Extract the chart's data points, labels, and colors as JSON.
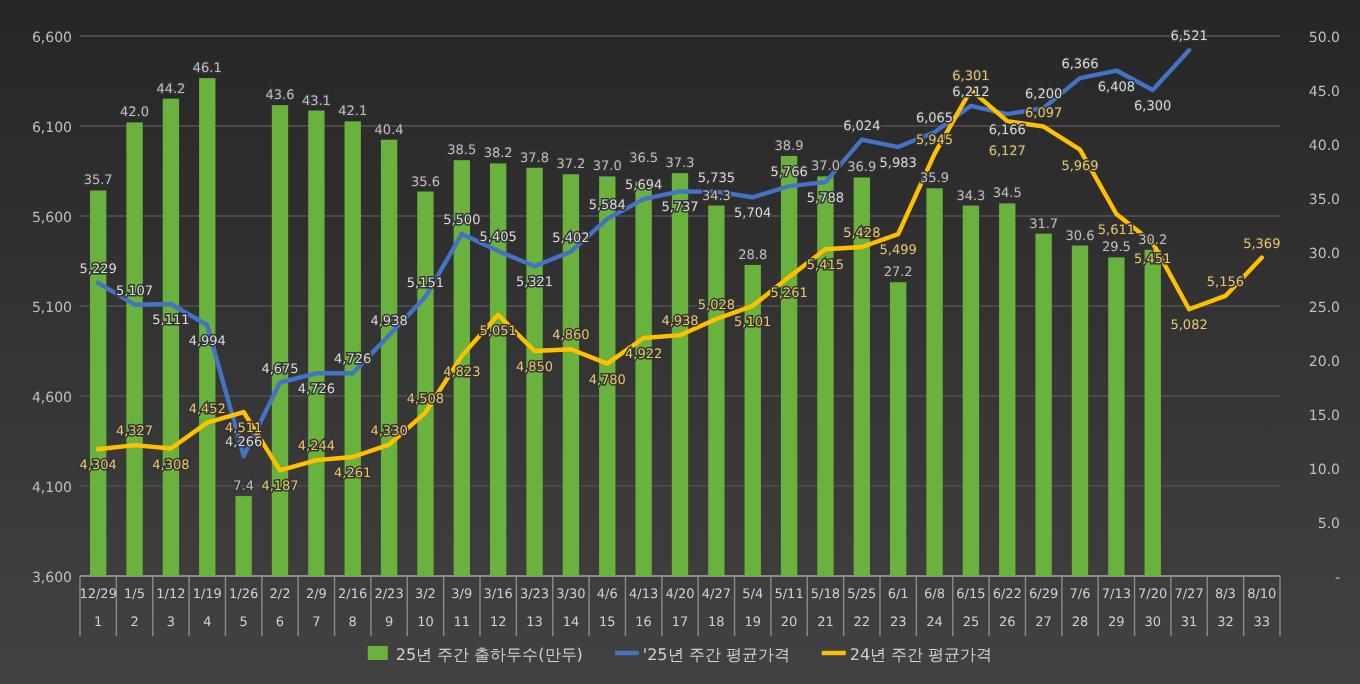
{
  "chart_data": {
    "type": "bar",
    "categories": [
      "12/29\n1",
      "1/5\n2",
      "1/12\n3",
      "1/19\n4",
      "1/26\n5",
      "2/2\n6",
      "2/9\n7",
      "2/16\n8",
      "2/23\n9",
      "3/2\n10",
      "3/9\n11",
      "3/16\n12",
      "3/23\n13",
      "3/30\n14",
      "4/6\n15",
      "4/13\n16",
      "4/20\n17",
      "4/27\n18",
      "5/4\n19",
      "5/11\n20",
      "5/18\n21",
      "5/25\n22",
      "6/1\n23",
      "6/8\n24",
      "6/15\n25",
      "6/22\n26",
      "6/29\n27",
      "7/6\n28",
      "7/13\n29",
      "7/20\n30",
      "7/27\n31",
      "8/3\n32",
      "8/10\n33"
    ],
    "series": [
      {
        "name": "25년 주간 출하두수(만두)",
        "type": "bar",
        "axis": "y2",
        "color": "#6ab23e",
        "values": [
          35.7,
          42.0,
          44.2,
          46.1,
          7.4,
          43.6,
          43.1,
          42.1,
          40.4,
          35.6,
          38.5,
          38.2,
          37.8,
          37.2,
          37.0,
          36.5,
          37.3,
          34.3,
          28.8,
          38.9,
          37.0,
          36.9,
          27.2,
          35.9,
          34.3,
          34.5,
          31.7,
          30.6,
          29.5,
          30.2,
          null,
          null,
          null
        ],
        "value_labels": [
          "35.7",
          "42.0",
          "44.2",
          "46.1",
          "7.4",
          "43.6",
          "43.1",
          "42.1",
          "40.4",
          "35.6",
          "38.5",
          "38.2",
          "37.8",
          "37.2",
          "37.0",
          "36.5",
          "37.3",
          "34.3",
          "28.8",
          "38.9",
          "37.0",
          "36.9",
          "27.2",
          "35.9",
          "34.3",
          "34.5",
          "31.7",
          "30.6",
          "29.5",
          "30.2",
          null,
          null,
          null
        ]
      },
      {
        "name": "'25년 주간 평균가격",
        "type": "line",
        "color": "#4472c4",
        "values": [
          5229,
          5107,
          5111,
          4994,
          4266,
          4675,
          4726,
          4726,
          4938,
          5151,
          5500,
          5405,
          5321,
          5402,
          5584,
          5694,
          5737,
          5735,
          5704,
          5766,
          5788,
          6024,
          5983,
          6065,
          6212,
          6166,
          6200,
          6366,
          6408,
          6300,
          6521,
          null,
          null
        ],
        "value_labels": [
          "5,229",
          "5,107",
          "5,111",
          "4,994",
          "4,266",
          "4,675",
          "4,726",
          "4,726",
          "4,938",
          "5,151",
          "5,500",
          "5,405",
          "5,321",
          "5,402",
          "5,584",
          "5,694",
          "5,737",
          "5,735",
          "5,704",
          "5,766",
          "5,788",
          "6,024",
          "5,983",
          "6,065",
          "6,212",
          "6,166",
          "6,200",
          "6,366",
          "6,408",
          "6,300",
          "6,521",
          null,
          null
        ]
      },
      {
        "name": "24년 주간 평균가격",
        "type": "line",
        "color": "#ffc000",
        "values": [
          4304,
          4327,
          4308,
          4452,
          4511,
          4187,
          4244,
          4261,
          4330,
          4508,
          4823,
          5051,
          4850,
          4860,
          4780,
          4922,
          4938,
          5028,
          5101,
          5261,
          5415,
          5428,
          5499,
          5945,
          6301,
          6127,
          6097,
          5969,
          5611,
          5451,
          5082,
          5156,
          5369
        ],
        "value_labels": [
          "4,304",
          "4,327",
          "4,308",
          "4,452",
          "4,511",
          "4,187",
          "4,244",
          "4,261",
          "4,330",
          "4,508",
          "4,823",
          "5,051",
          "4,850",
          "4,860",
          "4,780",
          "4,922",
          "4,938",
          "5,028",
          "5,101",
          "5,261",
          "5,415",
          "5,428",
          "5,499",
          "5,945",
          "6,301",
          "6,127",
          "6,097",
          "5,969",
          "5,611",
          "5,451",
          "5,082",
          "5,156",
          "5,369"
        ]
      }
    ],
    "ylim": [
      3600,
      6600
    ],
    "yticks": [
      {
        "value": 3600,
        "label": "3,600"
      },
      {
        "value": 4100,
        "label": "4,100"
      },
      {
        "value": 4600,
        "label": "4,600"
      },
      {
        "value": 5100,
        "label": "5,100"
      },
      {
        "value": 5600,
        "label": "5,600"
      },
      {
        "value": 6100,
        "label": "6,100"
      },
      {
        "value": 6600,
        "label": "6,600"
      }
    ],
    "y2lim": [
      0,
      50
    ],
    "y2ticks": [
      {
        "value": 0,
        "label": "-"
      },
      {
        "value": 5,
        "label": "5.0"
      },
      {
        "value": 10,
        "label": "10.0"
      },
      {
        "value": 15,
        "label": "15.0"
      },
      {
        "value": 20,
        "label": "20.0"
      },
      {
        "value": 25,
        "label": "25.0"
      },
      {
        "value": 30,
        "label": "30.0"
      },
      {
        "value": 35,
        "label": "35.0"
      },
      {
        "value": 40,
        "label": "40.0"
      },
      {
        "value": 45,
        "label": "45.0"
      },
      {
        "value": 50,
        "label": "50.0"
      }
    ],
    "grid": "y",
    "legend": "bottom"
  }
}
